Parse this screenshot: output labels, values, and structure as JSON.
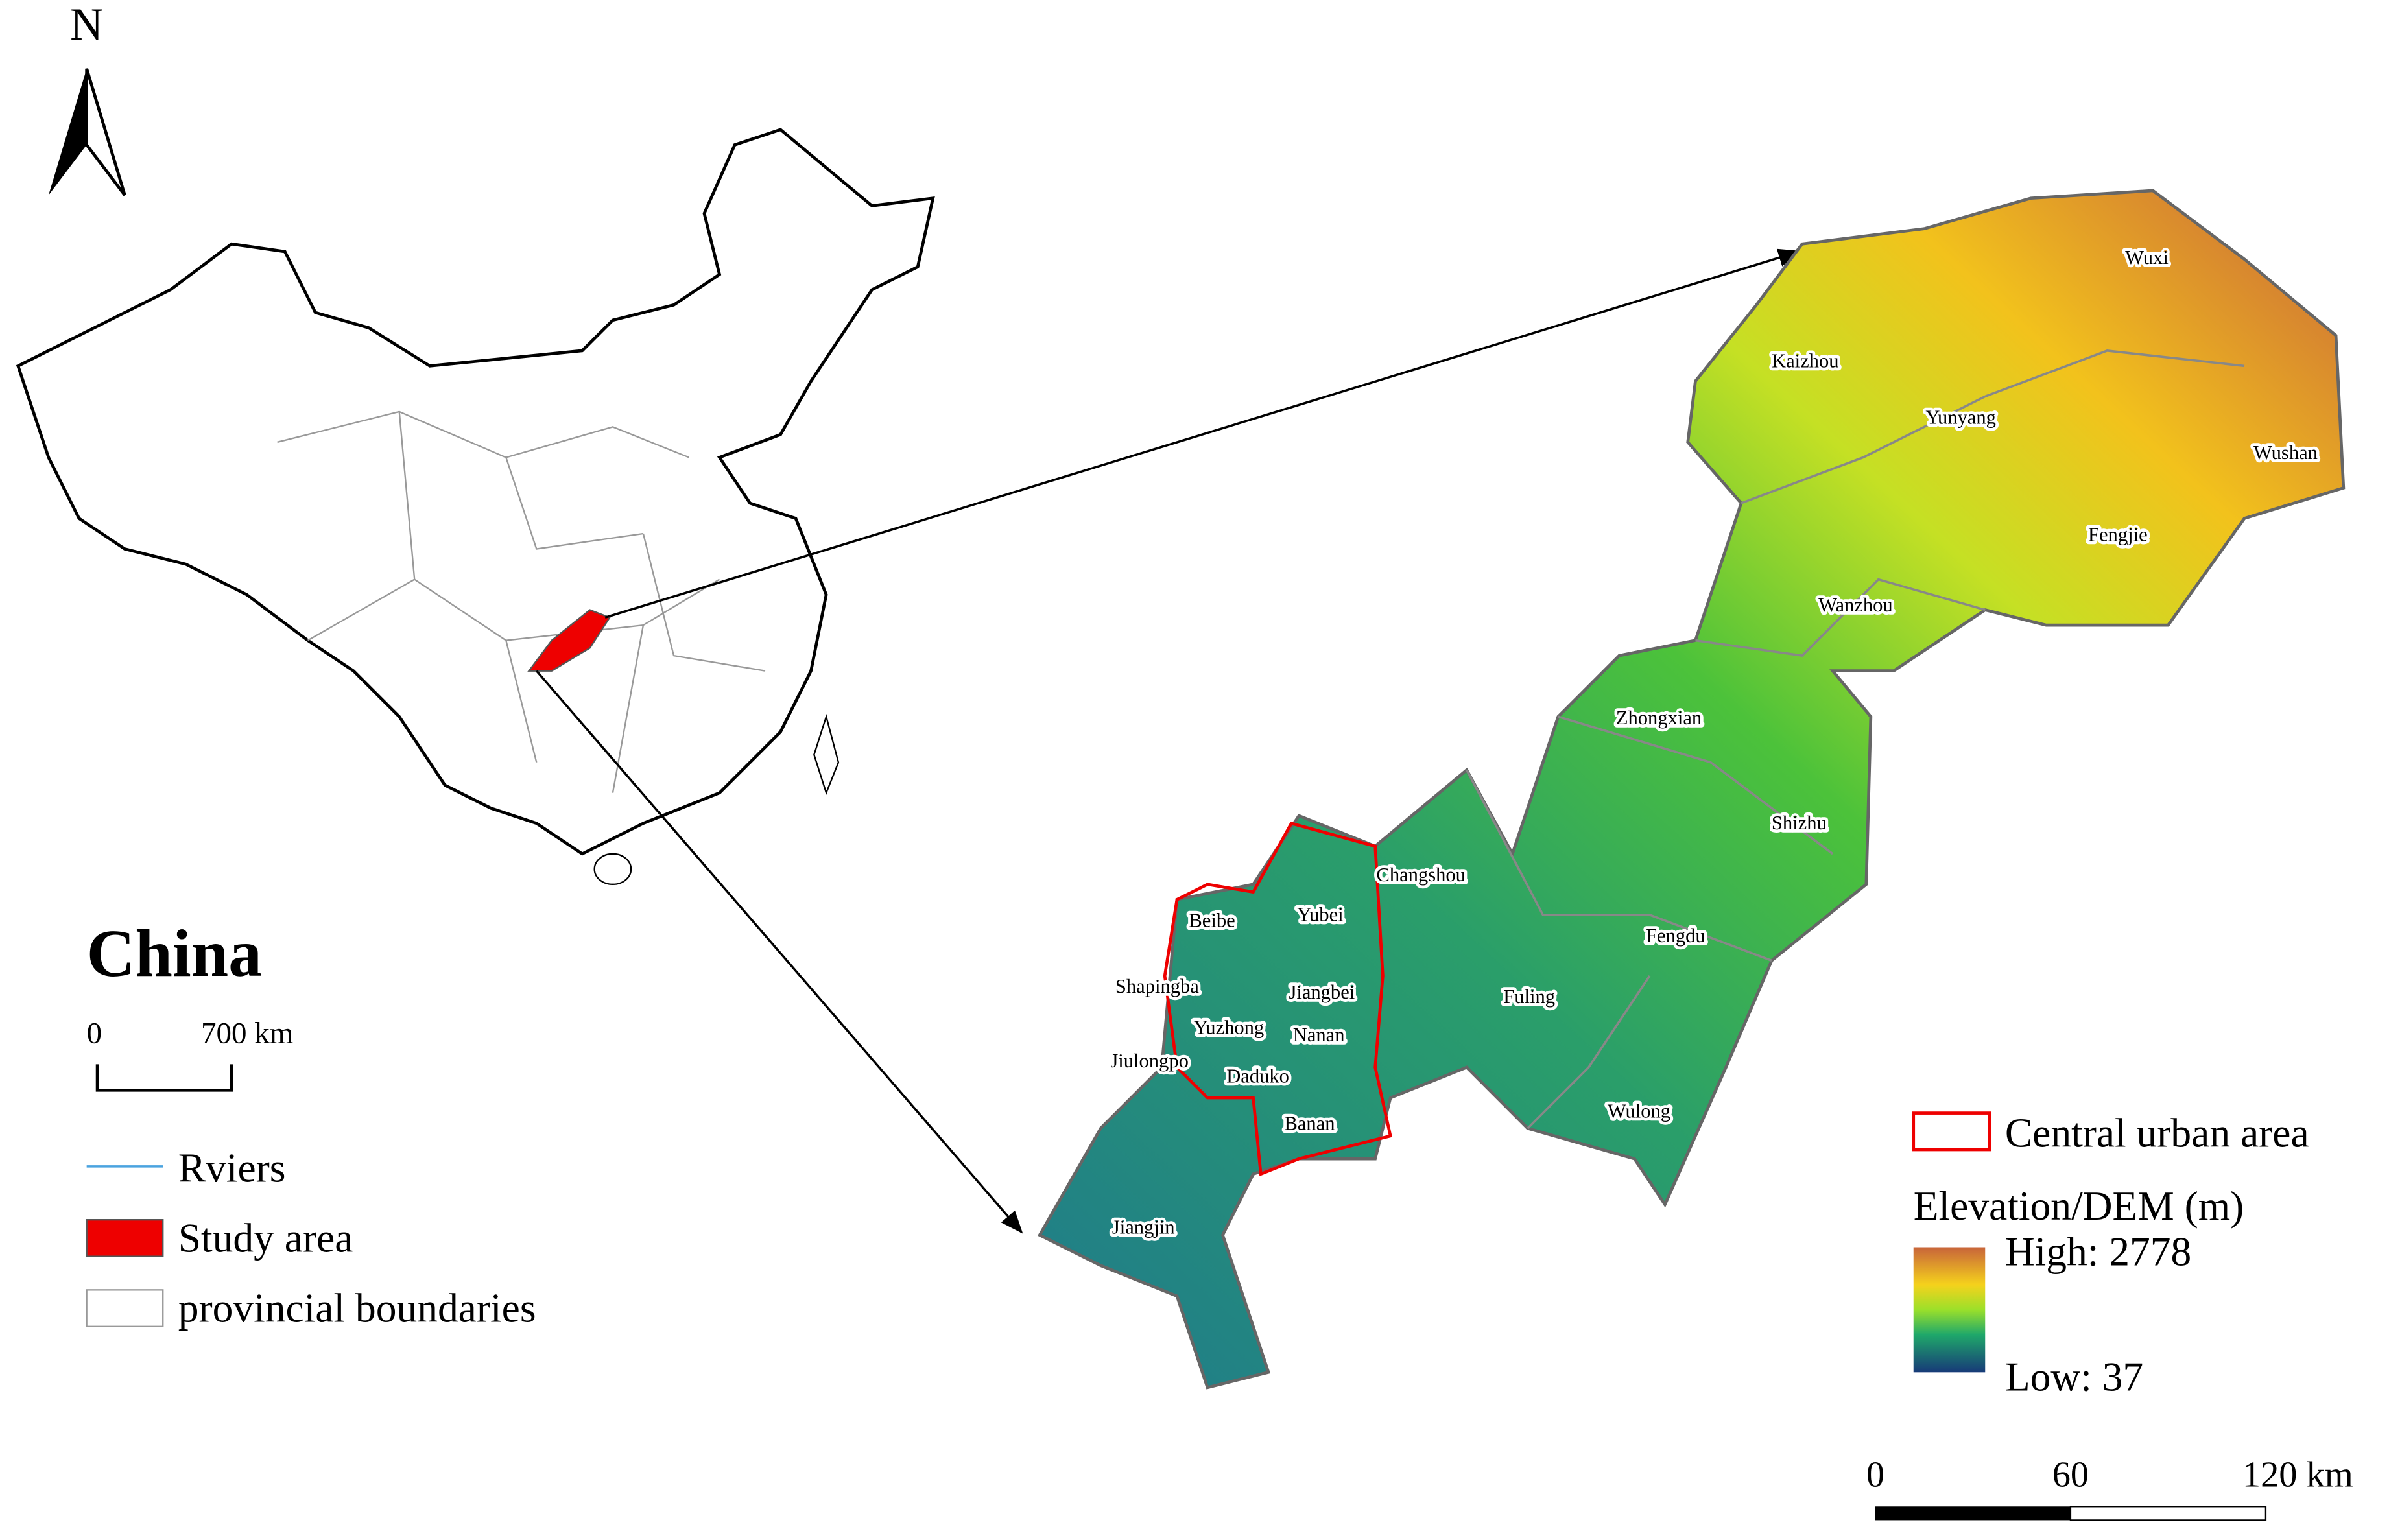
{
  "north_arrow": {
    "label": "N"
  },
  "china_map": {
    "title": "China",
    "scale_bar": {
      "labels": [
        "0",
        "700 km"
      ]
    }
  },
  "legend": {
    "items": [
      "Rviers",
      "Study area",
      "provincial boundaries"
    ]
  },
  "districts": [
    "Wuxi",
    "Kaizhou",
    "Yunyang",
    "Wushan",
    "Fengjie",
    "Wanzhou",
    "Zhongxian",
    "Shizhu",
    "Changshou",
    "Yubei",
    "Beibe",
    "Fengdu",
    "Shapingba",
    "Jiangbei",
    "Fuling",
    "Yuzhong",
    "Nanan",
    "Jiulongpo",
    "Daduko",
    "Banan",
    "Wulong",
    "Jiangjin"
  ],
  "elevation_legend": {
    "urban": "Central urban area",
    "title": "Elevation/DEM (m)",
    "high": "High: 2778",
    "low": "Low: 37"
  },
  "scale_bar": {
    "labels": [
      "0",
      "60",
      "120 km"
    ]
  }
}
